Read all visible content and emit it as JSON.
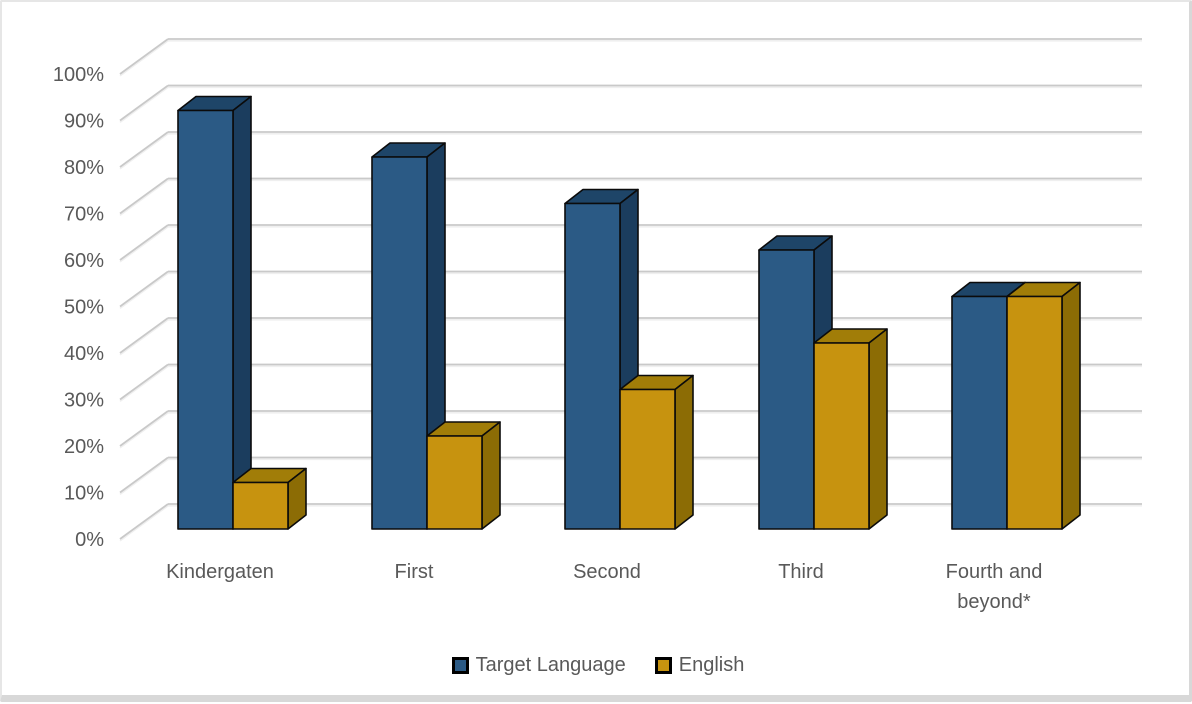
{
  "chart_data": {
    "type": "bar",
    "style": "3d-clustered-column",
    "title": "",
    "xlabel": "",
    "ylabel": "",
    "categories": [
      "Kindergaten",
      "First",
      "Second",
      "Third",
      "Fourth and beyond*"
    ],
    "category_display": [
      [
        "Kindergaten"
      ],
      [
        "First"
      ],
      [
        "Second"
      ],
      [
        "Third"
      ],
      [
        "Fourth and",
        "beyond*"
      ]
    ],
    "series": [
      {
        "name": "Target Language",
        "values": [
          90,
          80,
          70,
          60,
          50
        ],
        "color_front": "#2B5A85",
        "color_top": "#1E4568",
        "color_side": "#1B3D5E"
      },
      {
        "name": "English",
        "values": [
          10,
          20,
          30,
          40,
          50
        ],
        "color_front": "#C7930F",
        "color_top": "#A17D08",
        "color_side": "#8C6C05"
      }
    ],
    "y_axis": {
      "min": 0,
      "max": 100,
      "step": 10,
      "tick_format": "percent",
      "tick_labels": [
        "0%",
        "10%",
        "20%",
        "30%",
        "40%",
        "50%",
        "60%",
        "70%",
        "80%",
        "90%",
        "100%"
      ]
    },
    "legend": {
      "position": "bottom",
      "entries": [
        "Target Language",
        "English"
      ]
    },
    "grid": true
  },
  "colors": {
    "grid_main": "#C9C9C9",
    "grid_highlight": "#EFEFEF",
    "bar_outline": "#0B0B0B",
    "axis_text": "#595959",
    "frame": "#D8D8D8"
  }
}
